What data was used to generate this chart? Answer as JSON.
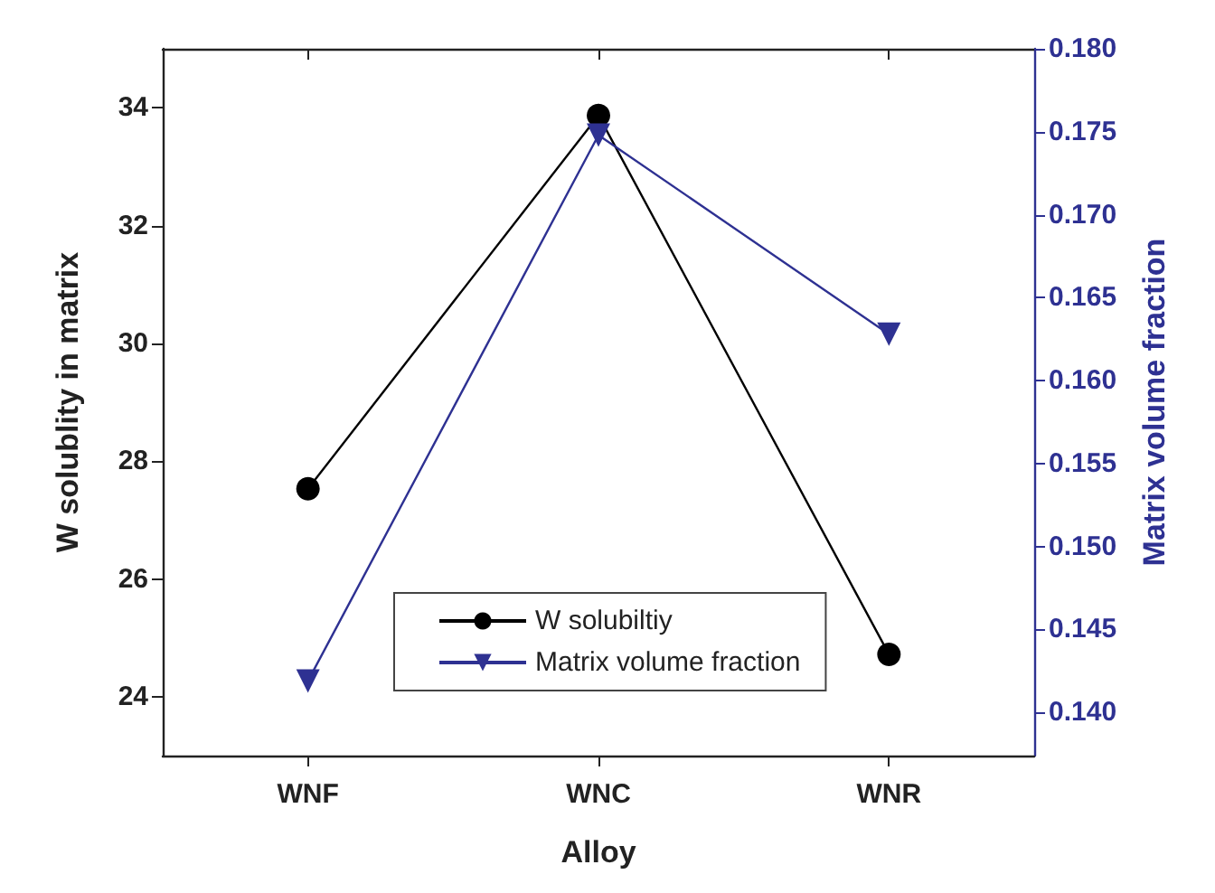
{
  "chart_data": {
    "type": "line",
    "xlabel": "Alloy",
    "ylabel": "W solublity in matrix",
    "y2label": "Matrix volume fraction",
    "categories": [
      "WNF",
      "WNC",
      "WNR"
    ],
    "series": [
      {
        "name": "W solubiltiy",
        "color": "#000000",
        "marker": "circle",
        "values": [
          27.53,
          33.87,
          24.72
        ]
      },
      {
        "name": "Matrix volume fraction",
        "color": "#2e3192",
        "marker": "triangle",
        "axis": "y2",
        "values": [
          0.1419,
          0.1748,
          0.1628
        ]
      }
    ],
    "ylim": [
      23,
      35
    ],
    "yticks": [
      24,
      26,
      28,
      30,
      32,
      34
    ],
    "y2lim": [
      0.1374,
      0.18
    ],
    "y2ticks": [
      {
        "value": 0.14,
        "label": "0.140"
      },
      {
        "value": 0.145,
        "label": "0.145"
      },
      {
        "value": 0.15,
        "label": "0.150"
      },
      {
        "value": 0.155,
        "label": "0.155"
      },
      {
        "value": 0.16,
        "label": "0.160"
      },
      {
        "value": 0.165,
        "label": "0.165"
      },
      {
        "value": 0.17,
        "label": "0.170"
      },
      {
        "value": 0.175,
        "label": "0.175"
      },
      {
        "value": 0.18,
        "label": "0.180"
      }
    ],
    "legend": "bottom",
    "grid": false
  }
}
